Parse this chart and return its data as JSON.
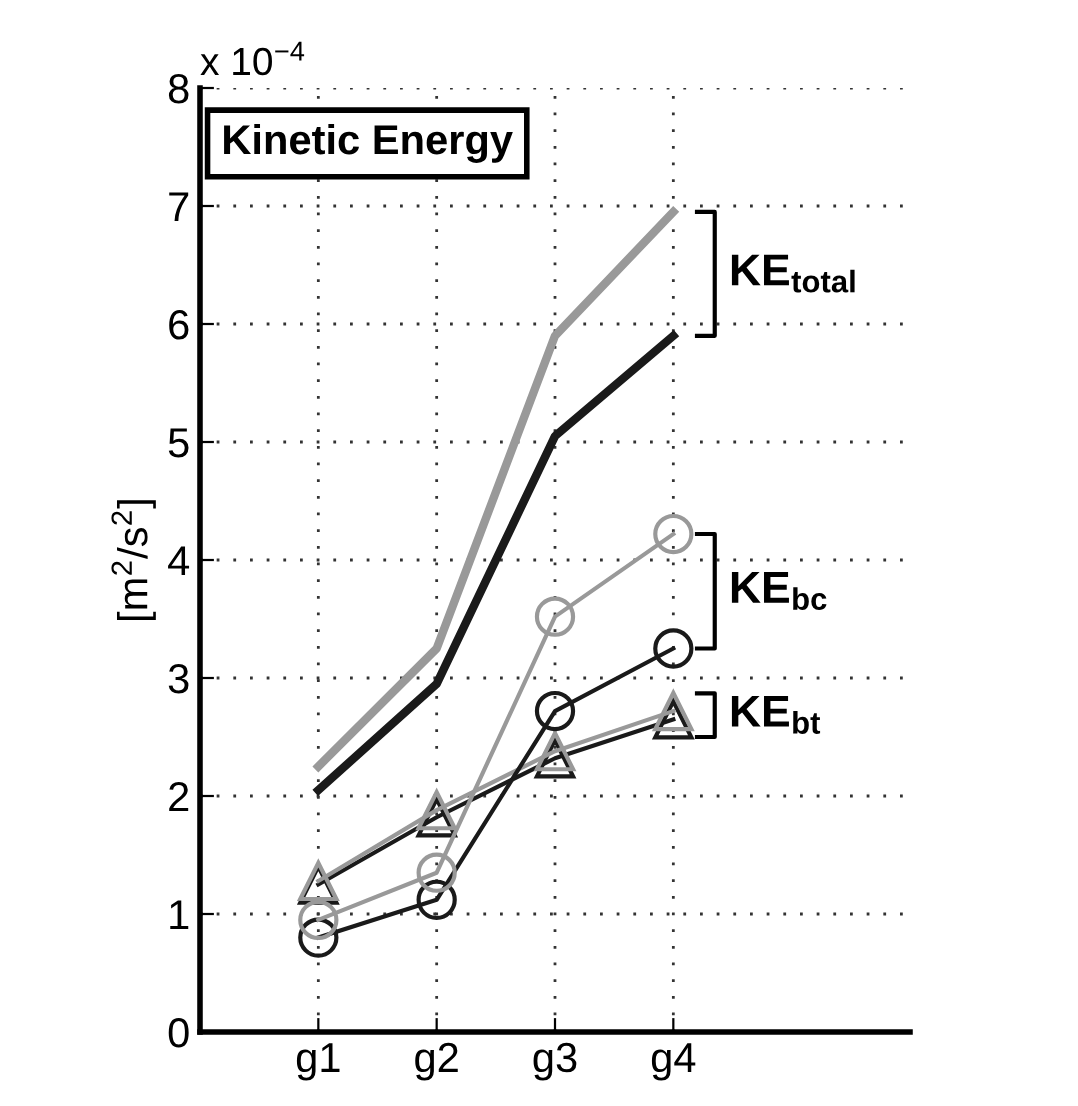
{
  "chart_data": {
    "type": "line",
    "title": "Kinetic Energy",
    "ylabel": "[m$^{2}$/s$^{2}$]",
    "annotations": [
      "x 10$^{−4}$",
      "KE$_{total}$",
      "KE$_{bc}$",
      "KE$_{bt}$"
    ],
    "categories": [
      "g1",
      "g2",
      "g3",
      "g4"
    ],
    "ylim": [
      0,
      8
    ],
    "yticks": [
      0,
      1,
      2,
      3,
      4,
      5,
      6,
      7,
      8
    ],
    "grid": true,
    "legend": false,
    "series": [
      {
        "color": "#999999",
        "marker": "none",
        "values": [
          2.25,
          3.25,
          5.9,
          6.95
        ]
      },
      {
        "color": "#1a1a1a",
        "marker": "none",
        "values": [
          2.05,
          2.95,
          5.05,
          5.9
        ]
      },
      {
        "color": "#999999",
        "marker": "circle",
        "values": [
          0.95,
          1.35,
          3.52,
          4.22
        ]
      },
      {
        "color": "#1a1a1a",
        "marker": "circle",
        "values": [
          0.8,
          1.12,
          2.72,
          3.25
        ]
      },
      {
        "color": "#999999",
        "marker": "triangle",
        "values": [
          1.28,
          1.88,
          2.38,
          2.72
        ]
      },
      {
        "color": "#1a1a1a",
        "marker": "triangle",
        "values": [
          1.25,
          1.82,
          2.32,
          2.65
        ]
      }
    ]
  }
}
